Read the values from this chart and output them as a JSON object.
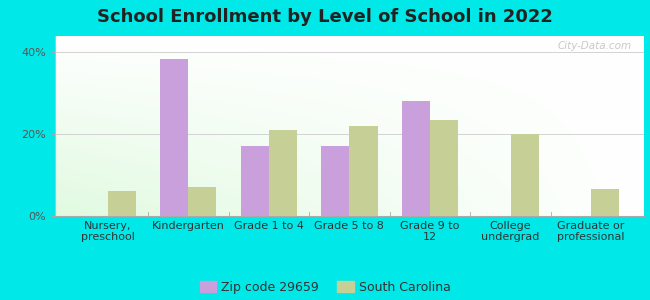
{
  "title": "School Enrollment by Level of School in 2022",
  "categories": [
    "Nursery,\npreschool",
    "Kindergarten",
    "Grade 1 to 4",
    "Grade 5 to 8",
    "Grade 9 to\n12",
    "College\nundergrad",
    "Graduate or\nprofessional"
  ],
  "zip_values": [
    0,
    38.5,
    17.0,
    17.0,
    28.0,
    0,
    0
  ],
  "sc_values": [
    6.0,
    7.0,
    21.0,
    22.0,
    23.5,
    20.0,
    6.5
  ],
  "zip_color": "#c9a0dc",
  "sc_color": "#c5cf96",
  "background_color": "#00e8e8",
  "yticks": [
    0,
    20,
    40
  ],
  "ylim": [
    0,
    44
  ],
  "legend_zip": "Zip code 29659",
  "legend_sc": "South Carolina",
  "title_fontsize": 13,
  "tick_fontsize": 8,
  "legend_fontsize": 9,
  "bar_width": 0.35,
  "watermark": "City-Data.com"
}
